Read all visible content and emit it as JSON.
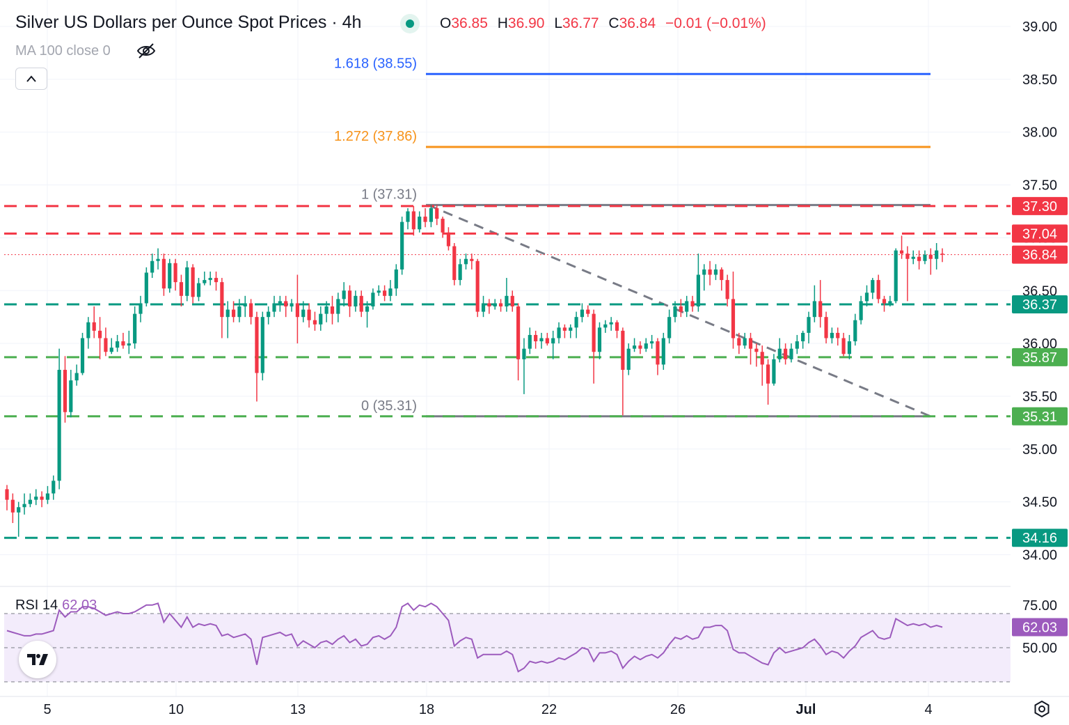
{
  "header": {
    "title": "Silver US Dollars per Ounce Spot Prices · 4h",
    "ohlc": {
      "o_label": "O",
      "o": "36.85",
      "h_label": "H",
      "h": "36.90",
      "l_label": "L",
      "l": "36.77",
      "c_label": "C",
      "c": "36.84",
      "change": "−0.01 (−0.01%)"
    },
    "indicator": "MA 100 close 0"
  },
  "rsi_panel": {
    "label": "RSI 14",
    "value": "62.03"
  },
  "icons": {
    "visibility": "eye-off-icon",
    "collapse": "chevron-up-icon",
    "logo": "tradingview-logo-icon",
    "settings": "settings-gear-icon"
  },
  "colors": {
    "up": "#089981",
    "down": "#f23645",
    "fib_1618": "#2962ff",
    "fib_1272": "#f7931a",
    "fib_range": "#787b86",
    "rsi_line": "#9c5bbd",
    "rsi_band": "#f3ecfb",
    "support": "#089981",
    "resistance": "#f23645",
    "support_light": "#4caf50"
  },
  "chart_data": {
    "type": "candlestick",
    "instrument": "Silver US Dollars per Ounce Spot Prices",
    "interval": "4h",
    "y_axis": {
      "ticks": [
        "34.00",
        "34.50",
        "35.00",
        "35.50",
        "36.00",
        "36.50",
        "37.00",
        "37.50",
        "38.00",
        "38.50",
        "39.00"
      ],
      "ylim": [
        33.7,
        39.2
      ]
    },
    "x_axis": {
      "labels": [
        "5",
        "10",
        "13",
        "18",
        "22",
        "26",
        "Jul",
        "4"
      ]
    },
    "candles": [
      [
        34.62,
        34.52,
        34.66,
        34.42
      ],
      [
        34.52,
        34.4,
        34.58,
        34.3
      ],
      [
        34.4,
        34.45,
        34.5,
        34.17
      ],
      [
        34.45,
        34.48,
        34.58,
        34.38
      ],
      [
        34.48,
        34.52,
        34.58,
        34.45
      ],
      [
        34.52,
        34.55,
        34.62,
        34.47
      ],
      [
        34.55,
        34.52,
        34.6,
        34.45
      ],
      [
        34.52,
        34.58,
        34.65,
        34.48
      ],
      [
        34.58,
        34.7,
        34.75,
        34.52
      ],
      [
        34.7,
        35.75,
        35.95,
        34.62
      ],
      [
        35.75,
        35.35,
        35.88,
        35.25
      ],
      [
        35.35,
        35.65,
        35.75,
        35.3
      ],
      [
        35.65,
        35.72,
        35.8,
        35.6
      ],
      [
        35.72,
        36.05,
        36.1,
        35.7
      ],
      [
        36.05,
        36.2,
        36.25,
        35.95
      ],
      [
        36.2,
        36.12,
        36.35,
        36.05
      ],
      [
        36.12,
        36.05,
        36.25,
        35.85
      ],
      [
        36.05,
        35.92,
        36.15,
        35.88
      ],
      [
        35.92,
        35.96,
        36.05,
        35.9
      ],
      [
        35.96,
        36.02,
        36.08,
        35.92
      ],
      [
        36.02,
        35.98,
        36.1,
        35.95
      ],
      [
        35.98,
        36.0,
        36.12,
        35.9
      ],
      [
        36.0,
        36.28,
        36.35,
        35.95
      ],
      [
        36.28,
        36.38,
        36.45,
        36.2
      ],
      [
        36.38,
        36.67,
        36.72,
        36.35
      ],
      [
        36.67,
        36.78,
        36.85,
        36.62
      ],
      [
        36.78,
        36.8,
        36.9,
        36.7
      ],
      [
        36.8,
        36.52,
        36.85,
        36.45
      ],
      [
        36.52,
        36.76,
        36.8,
        36.48
      ],
      [
        36.76,
        36.58,
        36.8,
        36.5
      ],
      [
        36.58,
        36.45,
        36.65,
        36.35
      ],
      [
        36.45,
        36.72,
        36.78,
        36.4
      ],
      [
        36.72,
        36.44,
        36.75,
        36.38
      ],
      [
        36.44,
        36.57,
        36.62,
        36.4
      ],
      [
        36.57,
        36.6,
        36.68,
        36.55
      ],
      [
        36.6,
        36.62,
        36.68,
        36.55
      ],
      [
        36.62,
        36.58,
        36.68,
        36.5
      ],
      [
        36.58,
        36.25,
        36.62,
        36.05
      ],
      [
        36.25,
        36.32,
        36.4,
        36.05
      ],
      [
        36.32,
        36.25,
        36.4,
        36.2
      ],
      [
        36.25,
        36.35,
        36.42,
        36.2
      ],
      [
        36.35,
        36.38,
        36.45,
        36.25
      ],
      [
        36.38,
        36.25,
        36.42,
        36.18
      ],
      [
        36.25,
        35.72,
        36.3,
        35.45
      ],
      [
        35.72,
        36.25,
        36.3,
        35.65
      ],
      [
        36.25,
        36.3,
        36.35,
        36.18
      ],
      [
        36.3,
        36.38,
        36.45,
        36.25
      ],
      [
        36.38,
        36.4,
        36.45,
        36.3
      ],
      [
        36.4,
        36.35,
        36.45,
        36.25
      ],
      [
        36.35,
        36.38,
        36.42,
        36.3
      ],
      [
        36.38,
        36.25,
        36.65,
        36.0
      ],
      [
        36.25,
        36.32,
        36.4,
        36.2
      ],
      [
        36.32,
        36.22,
        36.38,
        36.15
      ],
      [
        36.22,
        36.18,
        36.3,
        36.12
      ],
      [
        36.18,
        36.28,
        36.35,
        36.12
      ],
      [
        36.28,
        36.35,
        36.4,
        36.2
      ],
      [
        36.35,
        36.28,
        36.45,
        36.18
      ],
      [
        36.28,
        36.42,
        36.48,
        36.2
      ],
      [
        36.42,
        36.5,
        36.58,
        36.35
      ],
      [
        36.5,
        36.35,
        36.55,
        36.25
      ],
      [
        36.35,
        36.45,
        36.5,
        36.3
      ],
      [
        36.45,
        36.3,
        36.5,
        36.25
      ],
      [
        36.3,
        36.35,
        36.4,
        36.15
      ],
      [
        36.35,
        36.48,
        36.52,
        36.32
      ],
      [
        36.48,
        36.5,
        36.55,
        36.45
      ],
      [
        36.5,
        36.45,
        36.55,
        36.4
      ],
      [
        36.45,
        36.52,
        36.6,
        36.4
      ],
      [
        36.52,
        36.7,
        36.75,
        36.45
      ],
      [
        36.7,
        37.15,
        37.2,
        36.65
      ],
      [
        37.15,
        37.25,
        37.28,
        37.08
      ],
      [
        37.25,
        37.08,
        37.3,
        37.02
      ],
      [
        37.08,
        37.2,
        37.25,
        37.05
      ],
      [
        37.2,
        37.15,
        37.28,
        37.1
      ],
      [
        37.15,
        37.28,
        37.31,
        37.1
      ],
      [
        37.28,
        37.18,
        37.31,
        37.12
      ],
      [
        37.18,
        37.05,
        37.2,
        37.0
      ],
      [
        37.05,
        36.92,
        37.1,
        36.88
      ],
      [
        36.92,
        36.6,
        36.95,
        36.55
      ],
      [
        36.6,
        36.75,
        36.8,
        36.55
      ],
      [
        36.75,
        36.8,
        36.85,
        36.7
      ],
      [
        36.8,
        36.78,
        36.85,
        36.7
      ],
      [
        36.78,
        36.3,
        36.8,
        36.25
      ],
      [
        36.3,
        36.38,
        36.45,
        36.25
      ],
      [
        36.38,
        36.35,
        36.42,
        36.28
      ],
      [
        36.35,
        36.38,
        36.42,
        36.32
      ],
      [
        36.38,
        36.35,
        36.42,
        36.3
      ],
      [
        36.35,
        36.45,
        36.62,
        36.3
      ],
      [
        36.45,
        36.35,
        36.5,
        36.3
      ],
      [
        36.35,
        35.85,
        36.38,
        35.65
      ],
      [
        35.85,
        35.95,
        36.05,
        35.52
      ],
      [
        35.95,
        36.08,
        36.15,
        35.9
      ],
      [
        36.08,
        36.02,
        36.12,
        35.95
      ],
      [
        36.02,
        36.05,
        36.1,
        35.95
      ],
      [
        36.05,
        36.0,
        36.1,
        35.98
      ],
      [
        36.0,
        36.05,
        36.12,
        35.85
      ],
      [
        36.05,
        36.15,
        36.2,
        36.0
      ],
      [
        36.15,
        36.12,
        36.18,
        36.05
      ],
      [
        36.12,
        36.15,
        36.18,
        36.05
      ],
      [
        36.15,
        36.25,
        36.3,
        36.05
      ],
      [
        36.25,
        36.32,
        36.38,
        36.2
      ],
      [
        36.32,
        36.28,
        36.36,
        36.25
      ],
      [
        36.28,
        35.92,
        36.32,
        35.62
      ],
      [
        35.92,
        36.15,
        36.2,
        35.85
      ],
      [
        36.15,
        36.18,
        36.22,
        36.1
      ],
      [
        36.18,
        36.2,
        36.25,
        36.12
      ],
      [
        36.2,
        36.12,
        36.22,
        36.05
      ],
      [
        36.12,
        35.75,
        36.15,
        35.32
      ],
      [
        35.75,
        35.95,
        36.0,
        35.7
      ],
      [
        35.95,
        35.98,
        36.05,
        35.92
      ],
      [
        35.98,
        35.95,
        36.02,
        35.9
      ],
      [
        35.95,
        36.0,
        36.05,
        35.92
      ],
      [
        36.0,
        36.02,
        36.08,
        35.95
      ],
      [
        36.02,
        35.8,
        36.05,
        35.7
      ],
      [
        35.8,
        36.05,
        36.1,
        35.75
      ],
      [
        36.05,
        36.25,
        36.32,
        36.0
      ],
      [
        36.25,
        36.35,
        36.4,
        36.2
      ],
      [
        36.35,
        36.3,
        36.42,
        36.25
      ],
      [
        36.3,
        36.4,
        36.45,
        36.25
      ],
      [
        36.4,
        36.35,
        36.45,
        36.3
      ],
      [
        36.35,
        36.65,
        36.85,
        36.3
      ],
      [
        36.65,
        36.7,
        36.75,
        36.5
      ],
      [
        36.7,
        36.65,
        36.78,
        36.55
      ],
      [
        36.65,
        36.7,
        36.75,
        36.6
      ],
      [
        36.7,
        36.6,
        36.72,
        36.5
      ],
      [
        36.6,
        36.42,
        36.65,
        36.35
      ],
      [
        36.42,
        36.05,
        36.68,
        35.95
      ],
      [
        36.05,
        35.98,
        36.1,
        35.9
      ],
      [
        35.98,
        36.05,
        36.1,
        35.95
      ],
      [
        36.05,
        35.95,
        36.1,
        35.8
      ],
      [
        35.95,
        35.92,
        36.0,
        35.78
      ],
      [
        35.92,
        35.8,
        35.98,
        35.6
      ],
      [
        35.8,
        35.62,
        35.85,
        35.42
      ],
      [
        35.62,
        35.85,
        35.9,
        35.6
      ],
      [
        35.85,
        35.95,
        36.05,
        35.82
      ],
      [
        35.95,
        35.85,
        36.0,
        35.8
      ],
      [
        35.85,
        35.95,
        36.0,
        35.82
      ],
      [
        35.95,
        36.02,
        36.08,
        35.9
      ],
      [
        36.02,
        36.1,
        36.12,
        35.95
      ],
      [
        36.1,
        36.25,
        36.3,
        36.0
      ],
      [
        36.25,
        36.4,
        36.55,
        36.2
      ],
      [
        36.4,
        36.25,
        36.6,
        36.15
      ],
      [
        36.25,
        36.05,
        36.3,
        36.0
      ],
      [
        36.05,
        36.1,
        36.15,
        36.0
      ],
      [
        36.1,
        36.05,
        36.15,
        35.98
      ],
      [
        36.05,
        35.9,
        36.1,
        35.88
      ],
      [
        35.9,
        36.02,
        36.08,
        35.85
      ],
      [
        36.02,
        36.22,
        36.28,
        35.98
      ],
      [
        36.22,
        36.4,
        36.45,
        36.18
      ],
      [
        36.4,
        36.48,
        36.55,
        36.35
      ],
      [
        36.48,
        36.6,
        36.62,
        36.42
      ],
      [
        36.6,
        36.42,
        36.65,
        36.38
      ],
      [
        36.42,
        36.38,
        36.45,
        36.3
      ],
      [
        36.38,
        36.4,
        36.45,
        36.35
      ],
      [
        36.4,
        36.88,
        36.9,
        36.38
      ],
      [
        36.88,
        36.85,
        37.02,
        36.8
      ],
      [
        36.85,
        36.8,
        36.92,
        36.4
      ],
      [
        36.8,
        36.82,
        36.88,
        36.75
      ],
      [
        36.82,
        36.78,
        36.88,
        36.7
      ],
      [
        36.78,
        36.84,
        36.88,
        36.75
      ],
      [
        36.84,
        36.8,
        36.9,
        36.65
      ],
      [
        36.8,
        36.88,
        36.95,
        36.7
      ],
      [
        36.85,
        36.84,
        36.9,
        36.77
      ]
    ],
    "rsi": {
      "period": 14,
      "last": 62.03,
      "levels": [
        30,
        50,
        70
      ],
      "values": [
        60,
        59,
        58,
        57,
        57,
        58,
        58,
        59,
        60,
        72,
        68,
        71,
        71,
        74,
        74,
        73,
        71,
        69,
        70,
        71,
        70,
        70,
        71,
        73,
        75,
        75,
        76,
        65,
        70,
        66,
        62,
        68,
        62,
        64,
        63,
        64,
        63,
        57,
        58,
        56,
        57,
        58,
        55,
        40,
        56,
        57,
        58,
        59,
        57,
        58,
        51,
        54,
        52,
        50,
        53,
        54,
        52,
        55,
        57,
        53,
        55,
        51,
        52,
        56,
        57,
        55,
        57,
        62,
        74,
        76,
        72,
        75,
        74,
        76,
        74,
        70,
        66,
        51,
        54,
        56,
        55,
        44,
        46,
        46,
        46,
        46,
        48,
        46,
        36,
        38,
        42,
        41,
        42,
        41,
        42,
        44,
        43,
        45,
        47,
        50,
        49,
        42,
        47,
        47,
        48,
        46,
        38,
        42,
        45,
        43,
        45,
        46,
        44,
        47,
        52,
        56,
        55,
        57,
        55,
        56,
        62,
        62,
        63,
        63,
        60,
        49,
        47,
        47,
        45,
        43,
        41,
        40,
        47,
        50,
        47,
        48,
        49,
        50,
        53,
        55,
        51,
        46,
        48,
        47,
        44,
        48,
        51,
        56,
        58,
        60,
        56,
        55,
        56,
        67,
        65,
        63,
        64,
        63,
        64,
        62,
        63,
        62.03
      ]
    },
    "horizontal_levels": [
      {
        "value": 37.3,
        "label": "37.30",
        "role": "resistance"
      },
      {
        "value": 37.04,
        "label": "37.04",
        "role": "resistance"
      },
      {
        "value": 36.84,
        "label": "36.84",
        "role": "last-price"
      },
      {
        "value": 36.37,
        "label": "36.37",
        "role": "support"
      },
      {
        "value": 35.87,
        "label": "35.87",
        "role": "support"
      },
      {
        "value": 35.31,
        "label": "35.31",
        "role": "support"
      },
      {
        "value": 34.16,
        "label": "34.16",
        "role": "support"
      }
    ],
    "fibonacci_extension": [
      {
        "ratio": "1.618",
        "value": 38.55,
        "label": "1.618 (38.55)"
      },
      {
        "ratio": "1.272",
        "value": 37.86,
        "label": "1.272 (37.86)"
      },
      {
        "ratio": "1",
        "value": 37.31,
        "label": "1 (37.31)"
      },
      {
        "ratio": "0",
        "value": 35.31,
        "label": "0 (35.31)"
      }
    ],
    "trendline": {
      "style": "dashed",
      "from_value": 37.31,
      "to_value": 35.31
    }
  }
}
